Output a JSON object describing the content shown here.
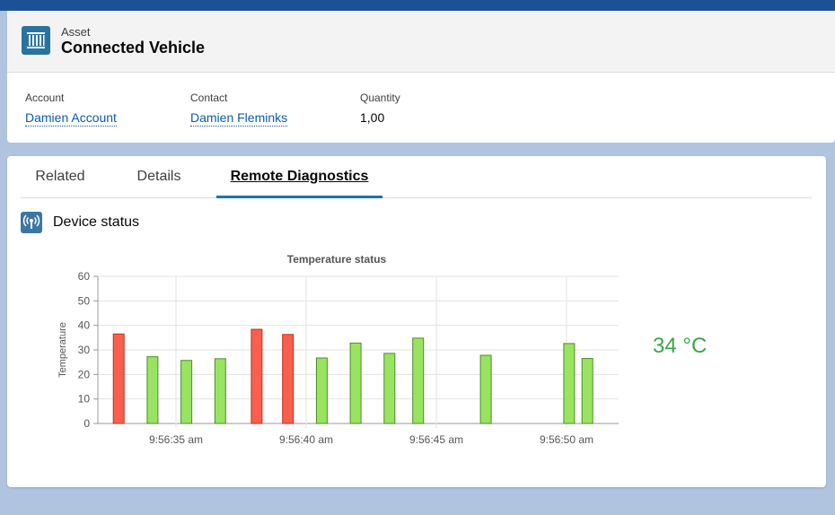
{
  "header": {
    "object_label": "Asset",
    "title": "Connected Vehicle",
    "fields": [
      {
        "label": "Account",
        "value": "Damien Account"
      },
      {
        "label": "Contact",
        "value": "Damien Fleminks"
      },
      {
        "label": "Quantity",
        "value": "1,00"
      }
    ]
  },
  "tabs": [
    {
      "label": "Related"
    },
    {
      "label": "Details"
    },
    {
      "label": "Remote Diagnostics"
    }
  ],
  "section": {
    "title": "Device status"
  },
  "reading": {
    "value": "34 °C"
  },
  "colors": {
    "high": "#fa5f4e",
    "normal": "#98e461",
    "accent": "#1b73b9"
  },
  "chart_data": {
    "type": "bar",
    "title": "Temperature status",
    "xlabel": "",
    "ylabel": "Temperature",
    "ylim": [
      0,
      60
    ],
    "yticks": [
      0,
      10,
      20,
      30,
      40,
      50,
      60
    ],
    "xlim_seconds": [
      0,
      16
    ],
    "xticks": [
      {
        "t": 3,
        "label": "9:56:35 am"
      },
      {
        "t": 8,
        "label": "9:56:40 am"
      },
      {
        "t": 13,
        "label": "9:56:45 am"
      },
      {
        "t": 18,
        "label": "9:56:50 am"
      }
    ],
    "series": [
      {
        "name": "Temperature",
        "points": [
          {
            "t": 0.8,
            "value": 36.5,
            "status": "high"
          },
          {
            "t": 2.1,
            "value": 27.2,
            "status": "normal"
          },
          {
            "t": 3.4,
            "value": 25.7,
            "status": "normal"
          },
          {
            "t": 4.7,
            "value": 26.4,
            "status": "normal"
          },
          {
            "t": 6.1,
            "value": 38.4,
            "status": "high"
          },
          {
            "t": 7.3,
            "value": 36.3,
            "status": "high"
          },
          {
            "t": 8.6,
            "value": 26.7,
            "status": "normal"
          },
          {
            "t": 9.9,
            "value": 32.8,
            "status": "normal"
          },
          {
            "t": 11.2,
            "value": 28.6,
            "status": "normal"
          },
          {
            "t": 12.3,
            "value": 34.8,
            "status": "normal"
          },
          {
            "t": 14.9,
            "value": 27.8,
            "status": "normal"
          },
          {
            "t": 18.1,
            "value": 32.6,
            "status": "normal"
          },
          {
            "t": 18.8,
            "value": 26.5,
            "status": "normal"
          }
        ]
      }
    ]
  }
}
